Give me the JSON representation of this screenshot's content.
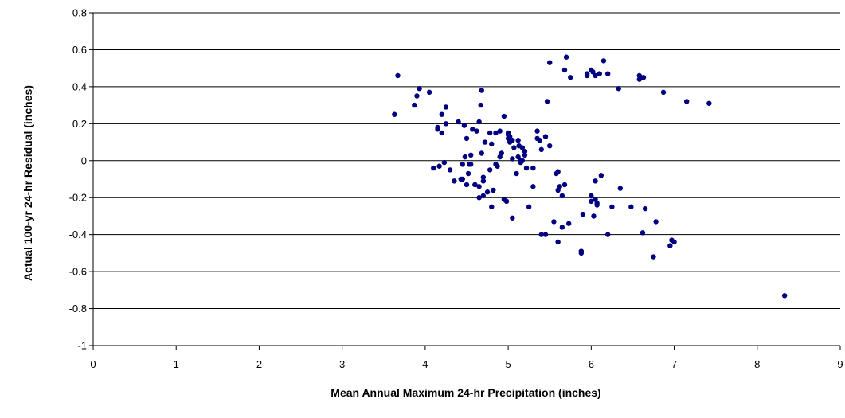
{
  "chart_data": {
    "type": "scatter",
    "title": "",
    "xlabel": "Mean Annual Maximum 24-hr Precipitation (inches)",
    "ylabel": "Actual 100-yr 24-hr Residual (inches)",
    "xlim": [
      0,
      9
    ],
    "ylim": [
      -1,
      0.8
    ],
    "x_ticks": [
      "0",
      "1",
      "2",
      "3",
      "4",
      "5",
      "6",
      "7",
      "8",
      "9"
    ],
    "y_ticks": [
      "0.8",
      "0.6",
      "0.4",
      "0.2",
      "0",
      "-0.2",
      "-0.4",
      "-0.6",
      "-0.8",
      "-1"
    ],
    "grid": "horizontal",
    "marker_color": "#000080",
    "series": [
      {
        "x": [
          3.63,
          3.67,
          3.87,
          3.9,
          3.93,
          4.05,
          4.1,
          4.15,
          4.17,
          4.2,
          4.2,
          4.25,
          4.25,
          4.3,
          4.35,
          4.4,
          4.45,
          4.45,
          4.47,
          4.5,
          4.52,
          4.55,
          4.57,
          4.6,
          4.62,
          4.65,
          4.65,
          4.67,
          4.68,
          4.7,
          4.7,
          4.75,
          4.78,
          4.8,
          4.82,
          4.85,
          4.87,
          4.9,
          4.92,
          4.95,
          4.98,
          5.0,
          5.0,
          5.02,
          5.03,
          5.05,
          5.07,
          5.1,
          5.12,
          5.15,
          5.17,
          5.2,
          5.22,
          5.25,
          5.3,
          5.35,
          5.4,
          5.45,
          5.47,
          5.5,
          5.55,
          5.6,
          5.6,
          5.62,
          5.65,
          5.68,
          5.7,
          5.75,
          5.88,
          5.9,
          5.95,
          6.0,
          6.0,
          6.03,
          6.05,
          6.05,
          6.07,
          6.1,
          6.12,
          6.15,
          6.2,
          6.25,
          6.35,
          6.48,
          6.6,
          6.65,
          6.78,
          6.87,
          6.95,
          6.97,
          7.0,
          7.15,
          7.42,
          8.33,
          4.23,
          4.53,
          4.65,
          4.9,
          5.3,
          5.45,
          4.55,
          5.0,
          5.12,
          5.17,
          5.35,
          4.48,
          4.85,
          4.95,
          5.2,
          4.68,
          4.8,
          4.5,
          5.05,
          5.02,
          5.13,
          5.05,
          5.6,
          5.65,
          5.68,
          6.0,
          6.05,
          6.07,
          6.02,
          5.95,
          5.58,
          5.4,
          5.88,
          6.2,
          6.62,
          6.75,
          5.5,
          5.73,
          6.33,
          6.58,
          6.58,
          6.63,
          4.15,
          4.43,
          4.72,
          4.6,
          4.7,
          4.78,
          5.15,
          5.38
        ],
        "y": [
          0.25,
          0.46,
          0.3,
          0.35,
          0.39,
          0.37,
          -0.04,
          0.17,
          -0.03,
          0.15,
          0.25,
          0.29,
          0.2,
          -0.05,
          -0.11,
          0.21,
          -0.1,
          -0.02,
          0.19,
          0.12,
          -0.07,
          0.03,
          0.17,
          -0.13,
          0.16,
          0.21,
          -0.2,
          0.3,
          0.38,
          -0.19,
          -0.09,
          -0.17,
          0.15,
          0.09,
          -0.16,
          0.15,
          -0.03,
          0.16,
          0.04,
          0.24,
          -0.22,
          0.15,
          0.14,
          0.1,
          0.11,
          0.01,
          0.07,
          -0.07,
          0.11,
          -0.01,
          0.07,
          0.03,
          -0.04,
          -0.25,
          -0.04,
          0.16,
          0.06,
          -0.4,
          0.32,
          0.08,
          -0.33,
          -0.06,
          -0.16,
          -0.14,
          -0.36,
          -0.13,
          0.56,
          0.45,
          -0.5,
          -0.29,
          0.46,
          0.49,
          -0.19,
          -0.3,
          -0.21,
          0.46,
          -0.24,
          0.47,
          -0.08,
          0.54,
          -0.4,
          -0.25,
          -0.15,
          -0.25,
          0.45,
          -0.26,
          -0.33,
          0.37,
          -0.46,
          -0.43,
          -0.44,
          0.32,
          0.31,
          -0.73,
          -0.01,
          -0.02,
          -0.14,
          0.02,
          -0.14,
          0.13,
          -0.02,
          0.12,
          0.02,
          0.0,
          0.12,
          0.02,
          -0.02,
          -0.21,
          0.05,
          0.04,
          -0.25,
          -0.13,
          -0.31,
          0.13,
          0.08,
          0.11,
          -0.44,
          -0.19,
          0.49,
          -0.22,
          -0.11,
          -0.23,
          0.48,
          0.47,
          -0.07,
          -0.4,
          -0.49,
          0.47,
          -0.39,
          -0.52,
          0.53,
          -0.34,
          0.39,
          0.44,
          0.46,
          0.45,
          0.18,
          -0.1,
          0.1,
          -0.13,
          -0.11,
          -0.05,
          0.0,
          0.11
        ]
      }
    ]
  }
}
